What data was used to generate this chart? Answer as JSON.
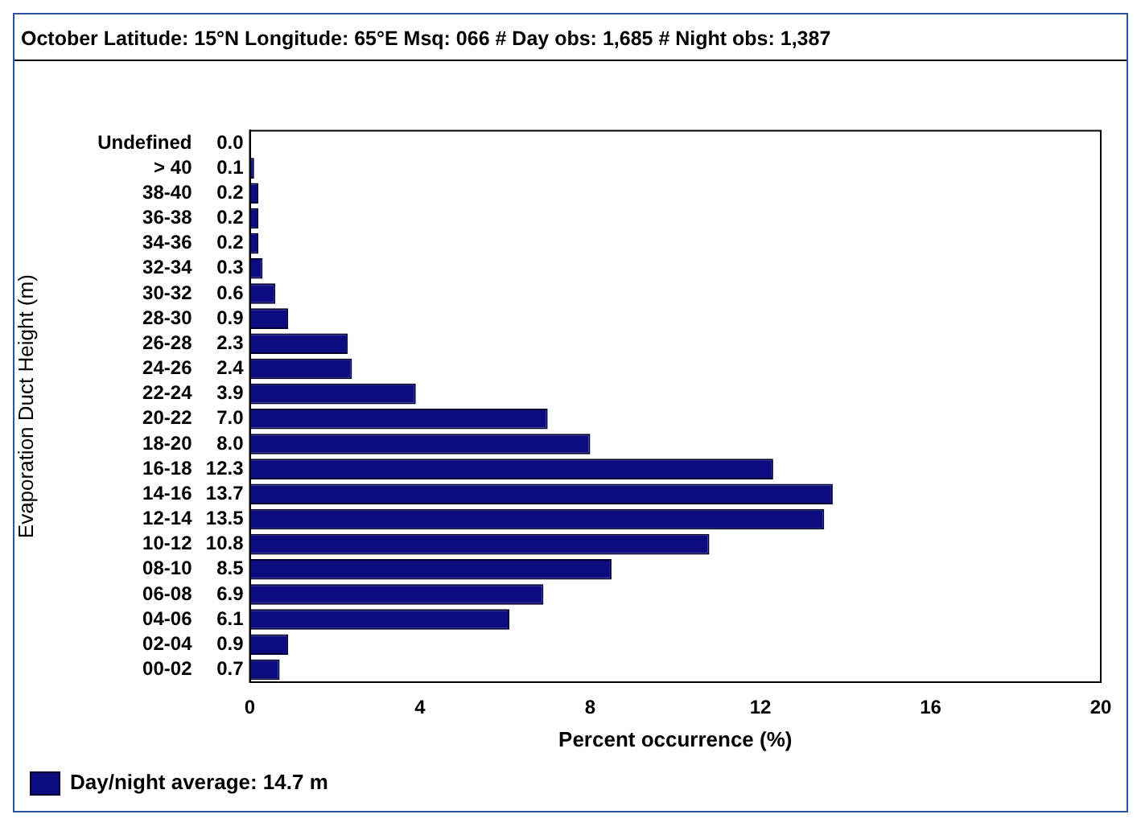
{
  "chart_data": {
    "type": "bar",
    "orientation": "horizontal",
    "title": "October   Latitude: 15°N   Longitude: 65°E   Msq: 066   # Day obs: 1,685   # Night obs: 1,387",
    "xlabel": "Percent occurrence (%)",
    "ylabel": "Evaporation Duct Height (m)",
    "categories": [
      "Undefined",
      "> 40",
      "38-40",
      "36-38",
      "34-36",
      "32-34",
      "30-32",
      "28-30",
      "26-28",
      "24-26",
      "22-24",
      "20-22",
      "18-20",
      "16-18",
      "14-16",
      "12-14",
      "10-12",
      "08-10",
      "06-08",
      "04-06",
      "02-04",
      "00-02"
    ],
    "series": [
      {
        "name": "Day/night average: 14.7 m",
        "color": "#0c0c80",
        "values": [
          0.0,
          0.1,
          0.2,
          0.2,
          0.2,
          0.3,
          0.6,
          0.9,
          2.3,
          2.4,
          3.9,
          7.0,
          8.0,
          12.3,
          13.7,
          13.5,
          10.8,
          8.5,
          6.9,
          6.1,
          0.9,
          0.7
        ],
        "value_labels": [
          "0.0",
          "0.1",
          "0.2",
          "0.2",
          "0.2",
          "0.3",
          "0.6",
          "0.9",
          "2.3",
          "2.4",
          "3.9",
          "7.0",
          "8.0",
          "12.3",
          "13.7",
          "13.5",
          "10.8",
          "8.5",
          "6.9",
          "6.1",
          "0.9",
          "0.7"
        ]
      }
    ],
    "xlim": [
      0,
      20
    ],
    "xticks": [
      0,
      4,
      8,
      12,
      16,
      20
    ],
    "grid": false,
    "legend": "bottom left"
  }
}
